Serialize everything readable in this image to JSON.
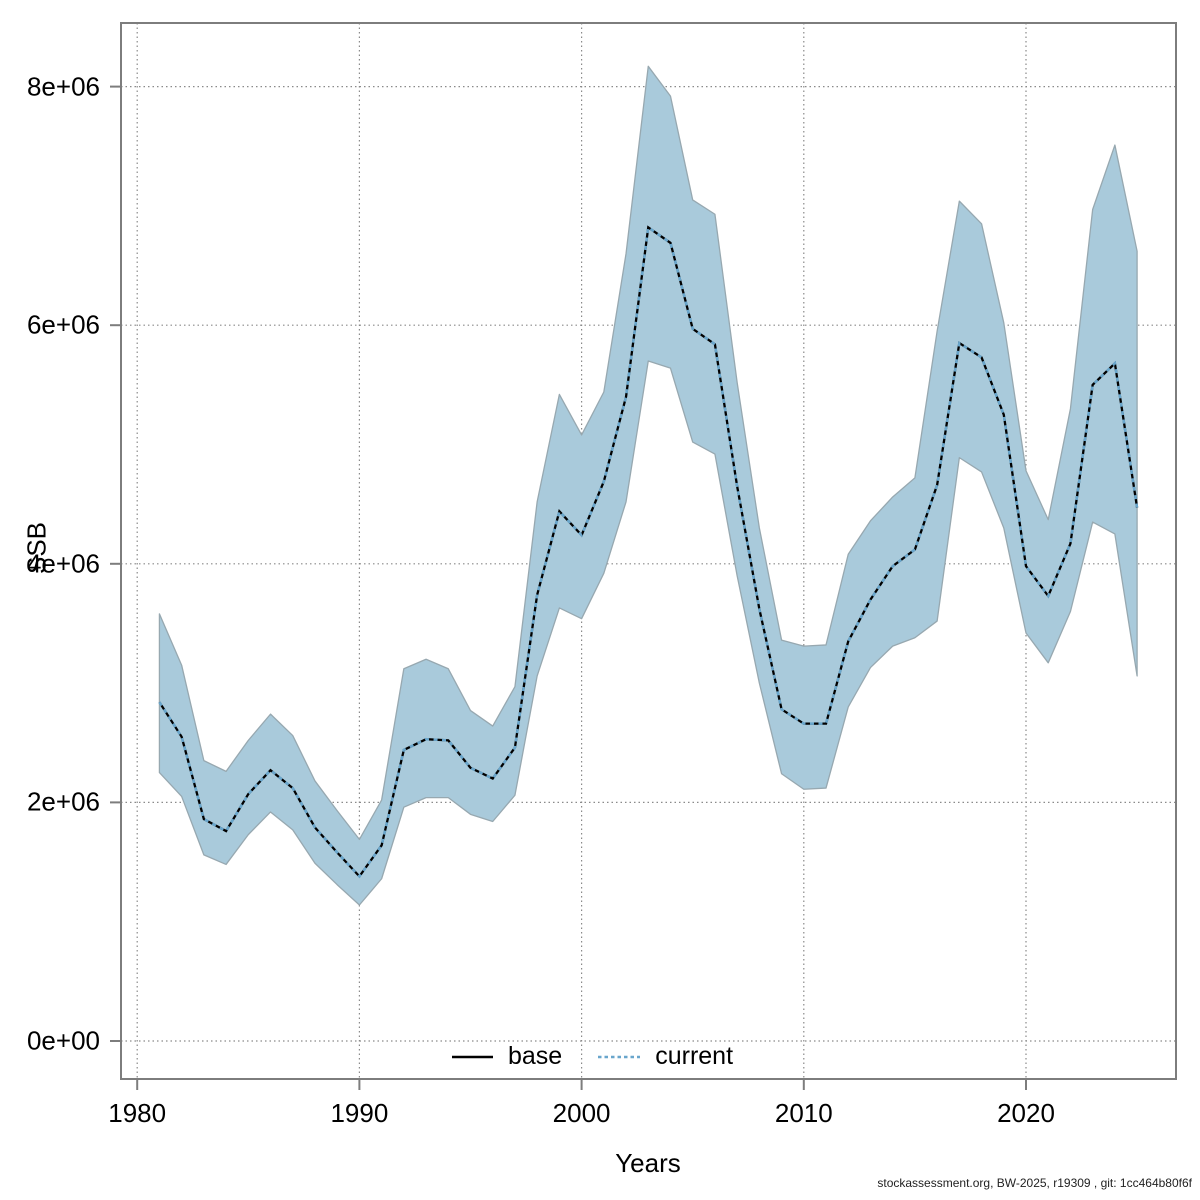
{
  "figure": {
    "y_axis": {
      "label": "SSB",
      "tick_labels": [
        "0e+00",
        "2e+06",
        "4e+06",
        "6e+06",
        "8e+06"
      ],
      "tick_values": [
        0,
        2000000,
        4000000,
        6000000,
        8000000
      ]
    },
    "x_axis": {
      "label": "Years",
      "tick_labels": [
        "1980",
        "1990",
        "2000",
        "2010",
        "2020"
      ],
      "tick_values": [
        1980,
        1990,
        2000,
        2010,
        2020
      ]
    },
    "legend": {
      "items": [
        {
          "label": "base",
          "line_style": "solid",
          "color": "#000000"
        },
        {
          "label": "current",
          "line_style": "dotted",
          "color": "#69a6cc"
        }
      ]
    },
    "footer": "stockassessment.org, BW-2025, r19309 , git: 1cc464b80f6f",
    "colors": {
      "confidence_band": "#a9cadb",
      "band_edge": "#97a8b0",
      "base_line": "#000000",
      "current_line": "#69a6cc",
      "grid": "#8a8a8a",
      "frame": "#7d7d7d"
    }
  },
  "chart_data": {
    "type": "line",
    "title": "",
    "xlabel": "Years",
    "ylabel": "SSB",
    "xlim": [
      1979.3,
      2026.8
    ],
    "ylim": [
      -320000,
      8530000
    ],
    "grid": "dotted, at decade x-ticks and 2e+06 y-ticks",
    "legend_position": "bottom-center-inside",
    "x": [
      1981,
      1982,
      1983,
      1984,
      1985,
      1986,
      1987,
      1988,
      1989,
      1990,
      1991,
      1992,
      1993,
      1994,
      1995,
      1996,
      1997,
      1998,
      1999,
      2000,
      2001,
      2002,
      2003,
      2004,
      2005,
      2006,
      2007,
      2008,
      2009,
      2010,
      2011,
      2012,
      2013,
      2014,
      2015,
      2016,
      2017,
      2018,
      2019,
      2020,
      2021,
      2022,
      2023,
      2024,
      2025
    ],
    "series": [
      {
        "name": "base",
        "style": "solid black line (visually coincident with current line)",
        "values": [
          2840000,
          2550000,
          1860000,
          1760000,
          2070000,
          2270000,
          2120000,
          1790000,
          1580000,
          1380000,
          1640000,
          2440000,
          2530000,
          2520000,
          2290000,
          2200000,
          2460000,
          3740000,
          4440000,
          4240000,
          4690000,
          5400000,
          6820000,
          6690000,
          5970000,
          5840000,
          4650000,
          3620000,
          2780000,
          2660000,
          2660000,
          3350000,
          3700000,
          3980000,
          4120000,
          4660000,
          5850000,
          5730000,
          5250000,
          3980000,
          3730000,
          4170000,
          5500000,
          5680000,
          4470000
        ]
      },
      {
        "name": "current",
        "style": "dotted blue line with shaded confidence band",
        "values": [
          2840000,
          2550000,
          1860000,
          1760000,
          2070000,
          2270000,
          2120000,
          1790000,
          1580000,
          1380000,
          1640000,
          2440000,
          2530000,
          2520000,
          2290000,
          2200000,
          2460000,
          3740000,
          4440000,
          4240000,
          4690000,
          5400000,
          6820000,
          6690000,
          5970000,
          5840000,
          4650000,
          3620000,
          2780000,
          2660000,
          2660000,
          3350000,
          3700000,
          3980000,
          4120000,
          4660000,
          5850000,
          5730000,
          5250000,
          3980000,
          3730000,
          4170000,
          5500000,
          5680000,
          4470000
        ],
        "ci_lower": [
          2250000,
          2050000,
          1560000,
          1480000,
          1730000,
          1920000,
          1770000,
          1490000,
          1310000,
          1140000,
          1360000,
          1960000,
          2040000,
          2040000,
          1900000,
          1840000,
          2060000,
          3060000,
          3630000,
          3540000,
          3920000,
          4520000,
          5700000,
          5640000,
          5020000,
          4920000,
          3900000,
          3000000,
          2240000,
          2110000,
          2120000,
          2800000,
          3130000,
          3310000,
          3380000,
          3520000,
          4890000,
          4770000,
          4300000,
          3420000,
          3170000,
          3600000,
          4350000,
          4250000,
          3060000
        ],
        "ci_upper": [
          3580000,
          3150000,
          2350000,
          2260000,
          2520000,
          2740000,
          2560000,
          2180000,
          1930000,
          1690000,
          2020000,
          3120000,
          3200000,
          3120000,
          2770000,
          2640000,
          2970000,
          4520000,
          5420000,
          5080000,
          5440000,
          6600000,
          8170000,
          7920000,
          7050000,
          6930000,
          5520000,
          4300000,
          3360000,
          3310000,
          3320000,
          4080000,
          4360000,
          4560000,
          4720000,
          5950000,
          7040000,
          6850000,
          6020000,
          4780000,
          4370000,
          5300000,
          6970000,
          7510000,
          6620000
        ]
      }
    ]
  }
}
